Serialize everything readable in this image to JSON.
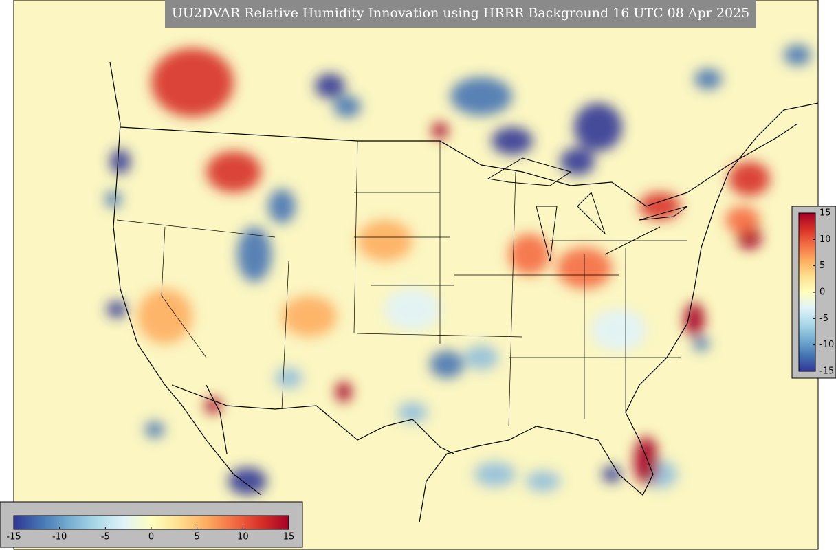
{
  "title": "UU2DVAR Relative Humidity Innovation using HRRR Background 16 UTC 08 Apr 2025",
  "colormap": [
    "#313695",
    "#4575b4",
    "#74add1",
    "#abd9e9",
    "#e0f3f8",
    "#ffffbf",
    "#fee090",
    "#fdae61",
    "#f46d43",
    "#d73027",
    "#a50026"
  ],
  "colorbars": [
    {
      "orientation": "horizontal",
      "lim": [
        -15,
        15
      ],
      "ticks": [
        -15,
        -10,
        -5,
        0,
        5,
        10,
        15
      ]
    },
    {
      "orientation": "vertical",
      "lim": [
        -15,
        15
      ],
      "ticks": [
        15,
        10,
        5,
        0,
        -5,
        -10,
        -15
      ]
    }
  ]
}
